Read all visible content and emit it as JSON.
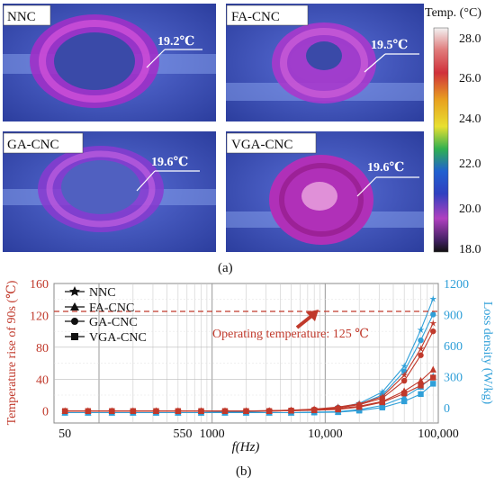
{
  "figure": {
    "panel_a_caption": "(a)",
    "panel_b_caption": "(b)"
  },
  "thermal": {
    "scale_title": "Temp. (°C)",
    "scale_ticks": [
      "28.0",
      "26.0",
      "24.0",
      "22.0",
      "20.0",
      "18.0"
    ],
    "images": [
      {
        "name": "NNC",
        "reading": "19.2℃"
      },
      {
        "name": "FA-CNC",
        "reading": "19.5℃"
      },
      {
        "name": "GA-CNC",
        "reading": "19.6℃"
      },
      {
        "name": "VGA-CNC",
        "reading": "19.6℃"
      }
    ]
  },
  "chart_data": {
    "type": "line",
    "x_scale": "log",
    "xlabel": "f(Hz)",
    "xlim": [
      40,
      100000
    ],
    "x_ticks": [
      "50",
      "550",
      "1000",
      "10,000",
      "100,000"
    ],
    "ylabel_left": "Temperature rise of 90s (℃)",
    "ylim_left": [
      -15,
      160
    ],
    "y_ticks_left": [
      "160",
      "120",
      "80",
      "40",
      "0"
    ],
    "ylabel_right": "Loss density (W/kg)",
    "ylim_right": [
      -150,
      1200
    ],
    "y_ticks_right": [
      "1200",
      "900",
      "600",
      "300",
      "0"
    ],
    "annotation": "Operating temperature: 125 ℃",
    "operating_temperature": 125,
    "legend": [
      "NNC",
      "FA-CNC",
      "GA-CNC",
      "VGA-CNC"
    ],
    "legend_placement": "top-left",
    "colors": {
      "temperature": "#c0392b",
      "loss": "#2f9fd8",
      "annotation": "#c0392b"
    },
    "x": [
      50,
      80,
      130,
      200,
      320,
      500,
      800,
      1300,
      2000,
      3200,
      5000,
      8000,
      13000,
      20000,
      32000,
      50000,
      70000,
      90000
    ],
    "temperature_series": [
      {
        "name": "NNC",
        "marker": "star",
        "values": [
          0,
          0,
          0,
          0,
          0,
          0,
          0,
          0,
          0,
          0.5,
          1,
          2.5,
          5,
          9,
          18,
          45,
          78,
          110
        ]
      },
      {
        "name": "FA-CNC",
        "marker": "triangle",
        "values": [
          0,
          0,
          0,
          0,
          0,
          0,
          0,
          0,
          0,
          0,
          0.5,
          1.5,
          3,
          6,
          12,
          25,
          38,
          52
        ]
      },
      {
        "name": "GA-CNC",
        "marker": "circle",
        "values": [
          0,
          0,
          0,
          0,
          0,
          0,
          0,
          0,
          0,
          0.5,
          1,
          2,
          4,
          8,
          16,
          38,
          70,
          100
        ]
      },
      {
        "name": "VGA-CNC",
        "marker": "square",
        "values": [
          0,
          0,
          0,
          0,
          0,
          0,
          0,
          0,
          0,
          0,
          0.5,
          1,
          2,
          5,
          11,
          22,
          32,
          42
        ]
      }
    ],
    "loss_series": [
      {
        "name": "NNC",
        "marker": "star",
        "values": [
          -50,
          -50,
          -50,
          -50,
          -50,
          -50,
          -50,
          -45,
          -40,
          -35,
          -30,
          -20,
          0,
          40,
          150,
          400,
          750,
          1050
        ]
      },
      {
        "name": "FA-CNC",
        "marker": "triangle",
        "values": [
          -50,
          -50,
          -50,
          -50,
          -50,
          -50,
          -50,
          -50,
          -50,
          -50,
          -50,
          -45,
          -40,
          -20,
          20,
          100,
          200,
          300
        ]
      },
      {
        "name": "GA-CNC",
        "marker": "circle",
        "values": [
          -50,
          -50,
          -50,
          -50,
          -50,
          -50,
          -50,
          -45,
          -40,
          -35,
          -30,
          -20,
          0,
          30,
          120,
          350,
          650,
          900
        ]
      },
      {
        "name": "VGA-CNC",
        "marker": "square",
        "values": [
          -50,
          -50,
          -50,
          -50,
          -50,
          -50,
          -50,
          -50,
          -50,
          -50,
          -50,
          -48,
          -45,
          -30,
          0,
          60,
          130,
          230
        ]
      }
    ]
  }
}
